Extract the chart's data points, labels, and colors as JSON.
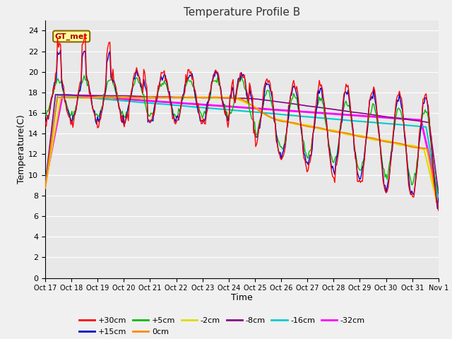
{
  "title": "Temperature Profile B",
  "xlabel": "Time",
  "ylabel": "Temperature(C)",
  "ylim": [
    0,
    25
  ],
  "yticks": [
    0,
    2,
    4,
    6,
    8,
    10,
    12,
    14,
    16,
    18,
    20,
    22,
    24
  ],
  "xtick_labels": [
    "Oct 17",
    "Oct 18",
    "Oct 19",
    "Oct 20",
    "Oct 21",
    "Oct 22",
    "Oct 23",
    "Oct 24",
    "Oct 25",
    "Oct 26",
    "Oct 27",
    "Oct 28",
    "Oct 29",
    "Oct 30",
    "Oct 31",
    "Nov 1"
  ],
  "bg_color": "#e8e8e8",
  "fig_color": "#f0f0f0",
  "grid_color": "#ffffff",
  "series_colors": {
    "+30cm": "#ff0000",
    "+15cm": "#0000cc",
    "+5cm": "#00bb00",
    "0cm": "#ff8800",
    "-2cm": "#dddd00",
    "-8cm": "#880088",
    "-16cm": "#00cccc",
    "-32cm": "#ff00ff"
  },
  "legend_box_facecolor": "#ffff99",
  "legend_box_edgecolor": "#886600",
  "gt_met_text_color": "#aa0000",
  "annotation": "GT_met",
  "title_fontsize": 11,
  "tick_fontsize": 8,
  "ylabel_fontsize": 9,
  "xlabel_fontsize": 9
}
